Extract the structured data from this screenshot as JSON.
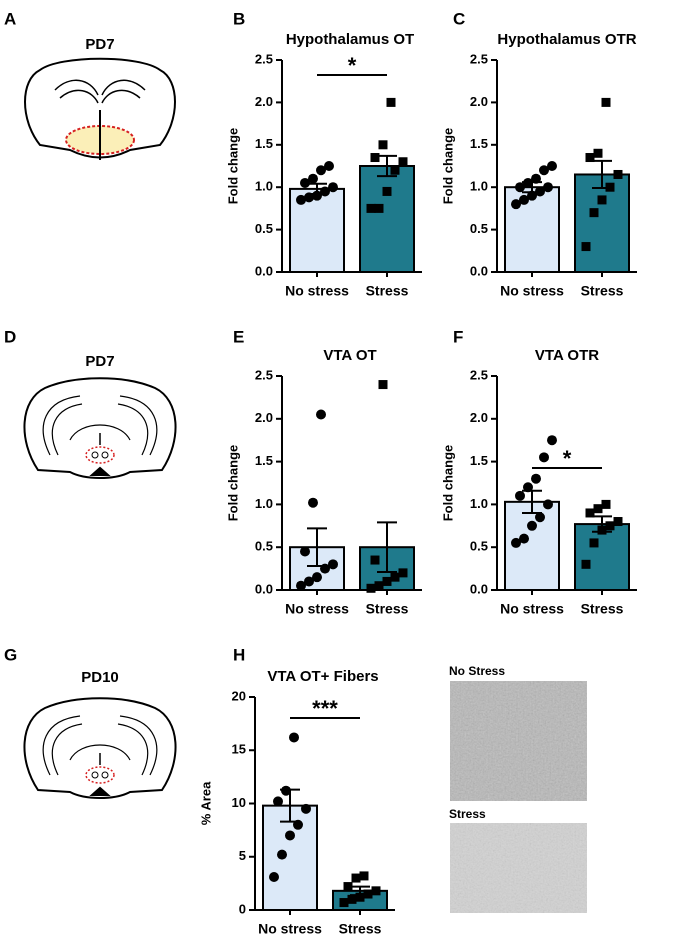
{
  "panel_labels": [
    "A",
    "B",
    "C",
    "D",
    "E",
    "F",
    "G",
    "H"
  ],
  "diagrams": [
    {
      "label": "PD7"
    },
    {
      "label": "PD7"
    },
    {
      "label": "PD10"
    }
  ],
  "images": [
    {
      "label": "No Stress"
    },
    {
      "label": "Stress"
    }
  ],
  "chart_data": [
    {
      "type": "bar",
      "title": "Hypothalamus OT",
      "ylabel": "Fold change",
      "categories": [
        "No stress",
        "Stress"
      ],
      "colors": [
        "#dce9f8",
        "#1f7a8c"
      ],
      "markers": [
        "circle",
        "square"
      ],
      "values": [
        0.98,
        1.25
      ],
      "errors": [
        0.06,
        0.12
      ],
      "points": [
        [
          0.85,
          0.88,
          0.9,
          0.95,
          1.0,
          1.05,
          1.1,
          1.2,
          1.25
        ],
        [
          0.75,
          0.75,
          0.95,
          1.2,
          1.3,
          1.35,
          1.5,
          2.0
        ]
      ],
      "significance": "*",
      "ylim": [
        0,
        2.5
      ],
      "yticks": [
        {
          "value": 0,
          "label": "0.0"
        },
        {
          "value": 0.5,
          "label": "0.5"
        },
        {
          "value": 1,
          "label": "1.0"
        },
        {
          "value": 1.5,
          "label": "1.5"
        },
        {
          "value": 2,
          "label": "2.0"
        },
        {
          "value": 2.5,
          "label": "2.5"
        }
      ]
    },
    {
      "type": "bar",
      "title": "Hypothalamus OTR",
      "ylabel": "Fold change",
      "categories": [
        "No stress",
        "Stress"
      ],
      "colors": [
        "#dce9f8",
        "#1f7a8c"
      ],
      "markers": [
        "circle",
        "square"
      ],
      "values": [
        1.0,
        1.15
      ],
      "errors": [
        0.06,
        0.16
      ],
      "points": [
        [
          0.8,
          0.85,
          0.9,
          0.95,
          1.0,
          1.0,
          1.05,
          1.1,
          1.2,
          1.25
        ],
        [
          0.3,
          0.7,
          0.85,
          1.0,
          1.15,
          1.35,
          1.4,
          2.0
        ]
      ],
      "ylim": [
        0,
        2.5
      ],
      "yticks": [
        {
          "value": 0,
          "label": "0.0"
        },
        {
          "value": 0.5,
          "label": "0.5"
        },
        {
          "value": 1,
          "label": "1.0"
        },
        {
          "value": 1.5,
          "label": "1.5"
        },
        {
          "value": 2,
          "label": "2.0"
        },
        {
          "value": 2.5,
          "label": "2.5"
        }
      ]
    },
    {
      "type": "bar",
      "title": "VTA OT",
      "ylabel": "Fold change",
      "categories": [
        "No stress",
        "Stress"
      ],
      "colors": [
        "#dce9f8",
        "#1f7a8c"
      ],
      "markers": [
        "circle",
        "square"
      ],
      "values": [
        0.5,
        0.5
      ],
      "errors": [
        0.22,
        0.29
      ],
      "points": [
        [
          0.05,
          0.1,
          0.15,
          0.25,
          0.3,
          0.45,
          1.02,
          2.05
        ],
        [
          0.02,
          0.05,
          0.1,
          0.15,
          0.2,
          0.35,
          2.4
        ]
      ],
      "ylim": [
        0,
        2.5
      ],
      "yticks": [
        {
          "value": 0,
          "label": "0.0"
        },
        {
          "value": 0.5,
          "label": "0.5"
        },
        {
          "value": 1,
          "label": "1.0"
        },
        {
          "value": 1.5,
          "label": "1.5"
        },
        {
          "value": 2,
          "label": "2.0"
        },
        {
          "value": 2.5,
          "label": "2.5"
        }
      ]
    },
    {
      "type": "bar",
      "title": "VTA OTR",
      "ylabel": "Fold change",
      "categories": [
        "No stress",
        "Stress"
      ],
      "colors": [
        "#dce9f8",
        "#1f7a8c"
      ],
      "markers": [
        "circle",
        "square"
      ],
      "values": [
        1.03,
        0.77
      ],
      "errors": [
        0.13,
        0.09
      ],
      "points": [
        [
          0.55,
          0.6,
          0.75,
          0.85,
          1.0,
          1.1,
          1.2,
          1.3,
          1.55,
          1.75
        ],
        [
          0.3,
          0.55,
          0.7,
          0.75,
          0.8,
          0.9,
          0.95,
          1.0
        ]
      ],
      "significance": "*",
      "ylim": [
        0,
        2.5
      ],
      "yticks": [
        {
          "value": 0,
          "label": "0.0"
        },
        {
          "value": 0.5,
          "label": "0.5"
        },
        {
          "value": 1,
          "label": "1.0"
        },
        {
          "value": 1.5,
          "label": "1.5"
        },
        {
          "value": 2,
          "label": "2.0"
        },
        {
          "value": 2.5,
          "label": "2.5"
        }
      ]
    },
    {
      "type": "bar",
      "title": "VTA OT+ Fibers",
      "ylabel": "% Area",
      "categories": [
        "No stress",
        "Stress"
      ],
      "colors": [
        "#dce9f8",
        "#1f7a8c"
      ],
      "markers": [
        "circle",
        "square"
      ],
      "values": [
        9.8,
        1.8
      ],
      "errors": [
        1.5,
        0.4
      ],
      "points": [
        [
          3.1,
          5.2,
          7.0,
          8.0,
          9.5,
          10.2,
          11.2,
          16.2
        ],
        [
          0.7,
          1.0,
          1.2,
          1.5,
          1.8,
          2.2,
          3.0,
          3.2
        ]
      ],
      "significance": "***",
      "ylim": [
        0,
        20
      ],
      "yticks": [
        0,
        5,
        10,
        15,
        20
      ]
    }
  ]
}
